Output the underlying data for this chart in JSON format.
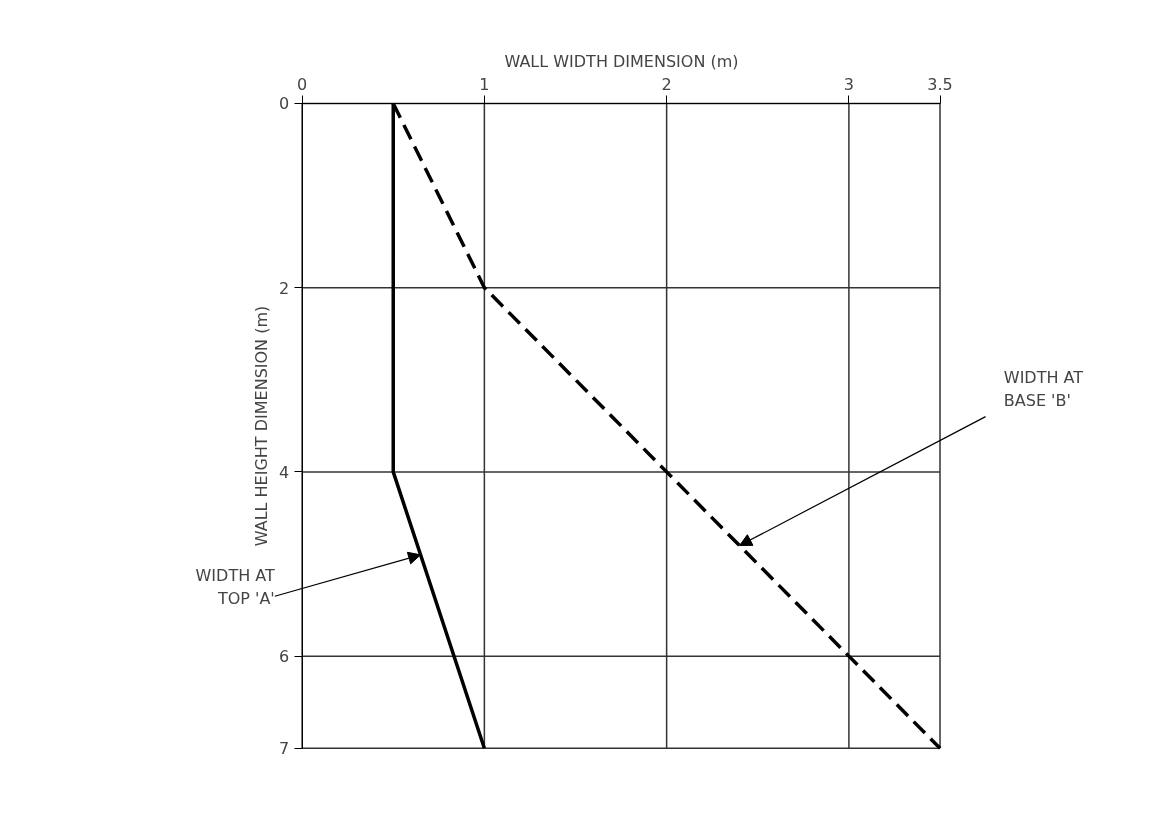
{
  "chart_data": {
    "type": "line",
    "xlabel": "WALL WIDTH DIMENSION (m)",
    "ylabel": "WALL HEIGHT DIMENSION (m)",
    "series": [
      {
        "color": "#000000",
        "line_style": "solid",
        "x": [
          0.5,
          0.5,
          1.0
        ],
        "values": [
          0,
          4,
          7
        ]
      },
      {
        "color": "#000000",
        "line_style": "dashed",
        "x": [
          0.5,
          1.0,
          2.0,
          3.0,
          3.5
        ],
        "values": [
          0,
          2,
          4,
          6,
          7
        ]
      }
    ],
    "xlim": [
      0,
      3.5
    ],
    "xticks": [
      0,
      1,
      2,
      3,
      3.5
    ],
    "ylim": [
      7,
      0
    ],
    "yticks": [
      0,
      2,
      4,
      6,
      7
    ],
    "grid": true,
    "marker": "none",
    "annotations": [
      {
        "text": "WIDTH AT\nTOP 'A'",
        "x": 0.65,
        "y": 4.9
      },
      {
        "text": "WIDTH AT\nBASE 'B'",
        "x": 2.4,
        "y": 4.8
      }
    ]
  }
}
